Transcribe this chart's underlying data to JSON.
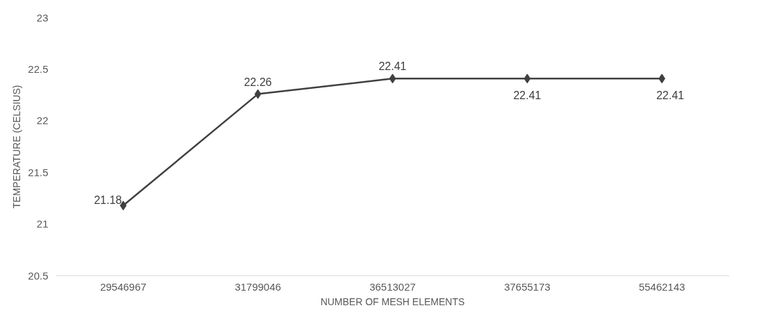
{
  "chart_data": {
    "type": "line",
    "xlabel": "NUMBER OF MESH ELEMENTS",
    "ylabel": "TEMPERATURE (CELSIUS)",
    "categories": [
      "29546967",
      "31799046",
      "36513027",
      "37655173",
      "55462143"
    ],
    "series": [
      {
        "color": "#404040",
        "values": [
          21.18,
          22.26,
          22.41,
          22.41,
          22.41
        ]
      }
    ],
    "ylim": [
      20.5,
      23
    ],
    "yticks": [
      20.5,
      21,
      21.5,
      22,
      22.5,
      23
    ],
    "grid": false,
    "marker": "diamond",
    "line_style": "solid",
    "data_labels": true
  }
}
